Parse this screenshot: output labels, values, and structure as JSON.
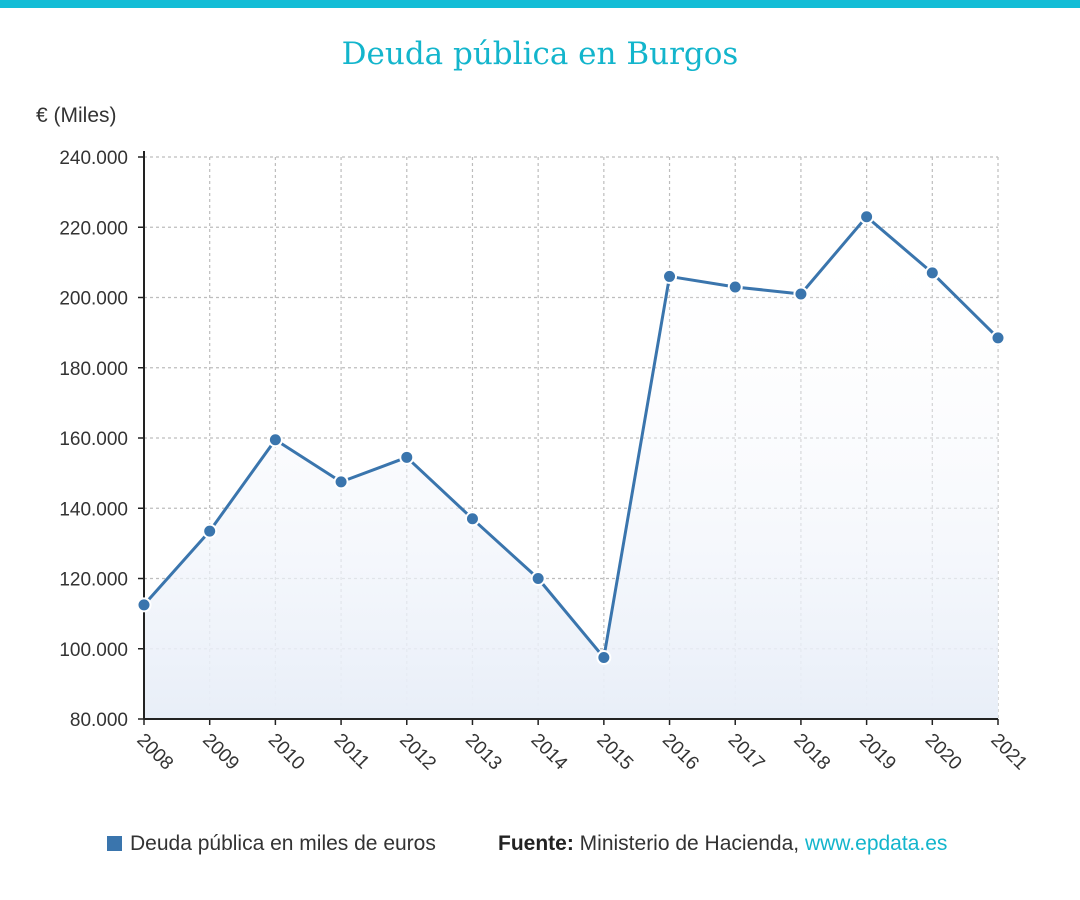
{
  "title": "Deuda pública en Burgos",
  "unit_label": "€ (Miles)",
  "colors": {
    "accent": "#13bdd6",
    "series": "#3a75ad",
    "grid": "#bdbdbd",
    "axis": "#222222"
  },
  "chart_data": {
    "type": "line",
    "title": "Deuda pública en Burgos",
    "ylabel": "€ (Miles)",
    "xlabel": "",
    "categories": [
      "2008",
      "2009",
      "2010",
      "2011",
      "2012",
      "2013",
      "2014",
      "2015",
      "2016",
      "2017",
      "2018",
      "2019",
      "2020",
      "2021"
    ],
    "series": [
      {
        "name": "Deuda pública en miles de euros",
        "values": [
          112500,
          133500,
          159500,
          147500,
          154500,
          137000,
          120000,
          97500,
          206000,
          203000,
          201000,
          223000,
          207000,
          188500
        ]
      }
    ],
    "ylim": [
      80000,
      240000
    ],
    "yticks": [
      80000,
      100000,
      120000,
      140000,
      160000,
      180000,
      200000,
      220000,
      240000
    ],
    "ytick_labels": [
      "80.000",
      "100.000",
      "120.000",
      "140.000",
      "160.000",
      "180.000",
      "200.000",
      "220.000",
      "240.000"
    ],
    "grid": true,
    "area_fill": true,
    "legend_position": "bottom-left"
  },
  "legend": {
    "label": "Deuda pública en miles de euros"
  },
  "source": {
    "label": "Fuente:",
    "text": "Ministerio de Hacienda,",
    "link": "www.epdata.es"
  }
}
